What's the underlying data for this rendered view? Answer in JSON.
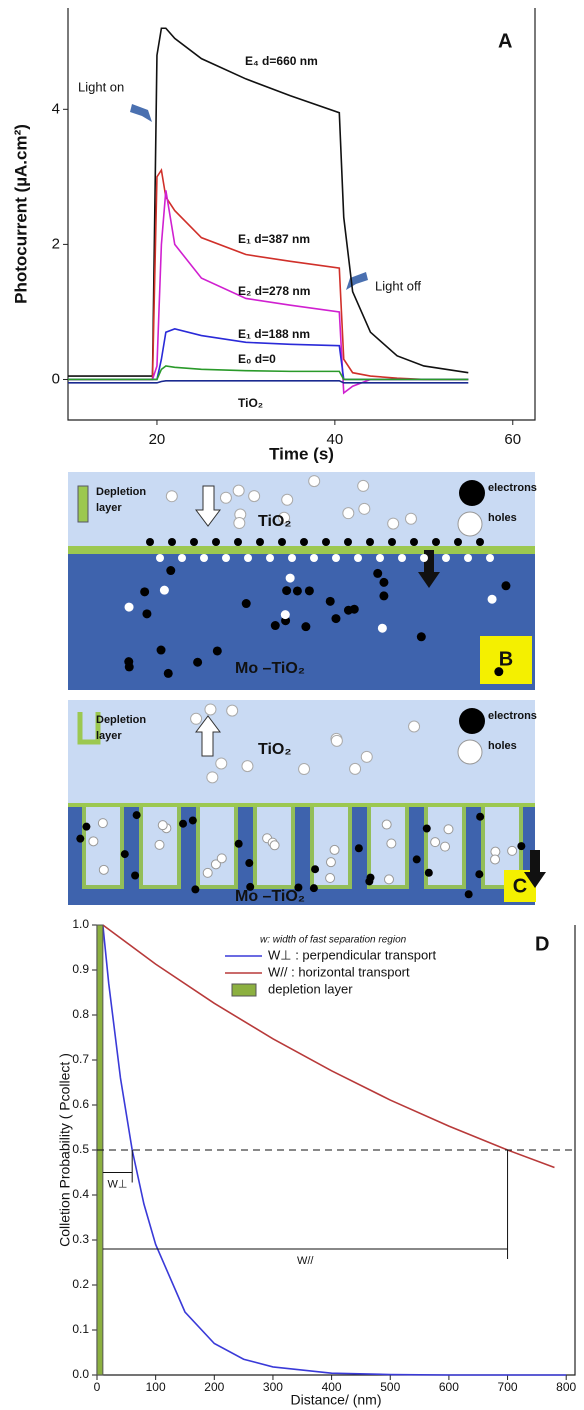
{
  "chart_data": [
    {
      "type": "line",
      "panel_label": "A",
      "xlabel": "Time (s)",
      "ylabel": "Photocurrent (µA.cm²)",
      "x": [
        10,
        19.5,
        20,
        20.5,
        21,
        22,
        25,
        30,
        35,
        40.5,
        41,
        42,
        44,
        47,
        50,
        55
      ],
      "xlim": [
        10,
        62.5
      ],
      "ylim": [
        -0.6,
        5.5
      ],
      "xticks": [
        20,
        40,
        60
      ],
      "yticks": [
        0,
        2,
        4
      ],
      "series": [
        {
          "name": "E₄ d=660 nm",
          "color": "#111111",
          "values": [
            0.05,
            0.05,
            4.8,
            5.2,
            5.2,
            5.05,
            4.75,
            4.45,
            4.2,
            3.95,
            2.4,
            1.3,
            0.7,
            0.35,
            0.2,
            0.1
          ]
        },
        {
          "name": "E₁ d=387 nm",
          "color": "#d0302a",
          "values": [
            0,
            0,
            3.0,
            3.1,
            2.7,
            2.5,
            2.1,
            1.85,
            1.75,
            1.65,
            0.3,
            0.1,
            0.05,
            0.02,
            0,
            0
          ]
        },
        {
          "name": "E₂ d=278 nm",
          "color": "#d020d0",
          "values": [
            0,
            0,
            0.2,
            2.0,
            2.8,
            2.0,
            1.5,
            1.2,
            1.1,
            1.0,
            -0.2,
            -0.1,
            0,
            0,
            0,
            0
          ]
        },
        {
          "name": "E₁ d=188 nm",
          "color": "#2a2ad8",
          "values": [
            0,
            0,
            0,
            0.3,
            0.7,
            0.75,
            0.65,
            0.55,
            0.52,
            0.5,
            0,
            0,
            0,
            0,
            0,
            0
          ]
        },
        {
          "name": "E₀ d=0",
          "color": "#2a9a2a",
          "values": [
            0,
            0,
            0,
            0.15,
            0.2,
            0.18,
            0.15,
            0.13,
            0.12,
            0.12,
            0,
            0,
            0,
            0,
            0,
            0
          ]
        },
        {
          "name": "TiO₂",
          "color": "#1a2a90",
          "values": [
            -0.05,
            -0.05,
            -0.05,
            -0.03,
            -0.02,
            -0.02,
            -0.02,
            -0.02,
            -0.02,
            -0.02,
            -0.05,
            -0.05,
            -0.05,
            -0.05,
            -0.05,
            -0.05
          ]
        }
      ],
      "annotations": [
        {
          "text": "Light on"
        },
        {
          "text": "Light off"
        }
      ]
    },
    {
      "type": "line",
      "panel_label": "D",
      "xlabel": "Distance/ (nm)",
      "ylabel": "Colletion Probability ( Pcollect )",
      "xlim": [
        0,
        815
      ],
      "ylim": [
        0,
        1
      ],
      "xticks": [
        0,
        100,
        200,
        300,
        400,
        500,
        600,
        700,
        800
      ],
      "yticks": [
        {
          "value": 0,
          "label": "0.0"
        },
        0.1,
        0.2,
        0.3,
        0.4,
        0.5,
        0.6,
        0.7,
        0.8,
        0.9,
        {
          "value": 1,
          "label": "1.0"
        }
      ],
      "legend_title": "w: width of fast separation region",
      "series": [
        {
          "name": "W⊥ : perpendicular transport",
          "color": "#3a3ad8",
          "x": [
            10,
            20,
            40,
            60,
            80,
            100,
            150,
            200,
            250,
            300,
            400,
            500,
            600,
            700,
            800
          ],
          "values": [
            1,
            0.87,
            0.66,
            0.5,
            0.38,
            0.29,
            0.14,
            0.07,
            0.035,
            0.018,
            0.004,
            0.001,
            0,
            0,
            0
          ]
        },
        {
          "name": "W// : horizontal transport",
          "color": "#b83a3a",
          "x": [
            10,
            100,
            200,
            300,
            400,
            500,
            600,
            700,
            780
          ],
          "values": [
            1,
            0.913,
            0.826,
            0.747,
            0.676,
            0.611,
            0.553,
            0.5,
            0.461
          ]
        }
      ],
      "depletion_layer": {
        "name": "depletion layer",
        "color": "#8cb040",
        "x": [
          0,
          10
        ]
      },
      "reference_line": {
        "y": 0.5
      },
      "annotations": [
        {
          "text": "W⊥",
          "x": [
            10,
            60
          ],
          "y": 0.45
        },
        {
          "text": "W//",
          "x": [
            10,
            700
          ],
          "y": 0.28
        }
      ]
    }
  ],
  "panel_b": {
    "label": "B",
    "depletion_label": [
      "Depletion",
      "layer"
    ],
    "top_material": "TiO₂",
    "bottom_material": "Mo –TiO₂",
    "legend": [
      "electrons",
      "holes"
    ]
  },
  "panel_c": {
    "label": "C",
    "depletion_label": [
      "Depletion",
      "layer"
    ],
    "top_material": "TiO₂",
    "bottom_material": "Mo –TiO₂",
    "legend": [
      "electrons",
      "holes"
    ]
  }
}
